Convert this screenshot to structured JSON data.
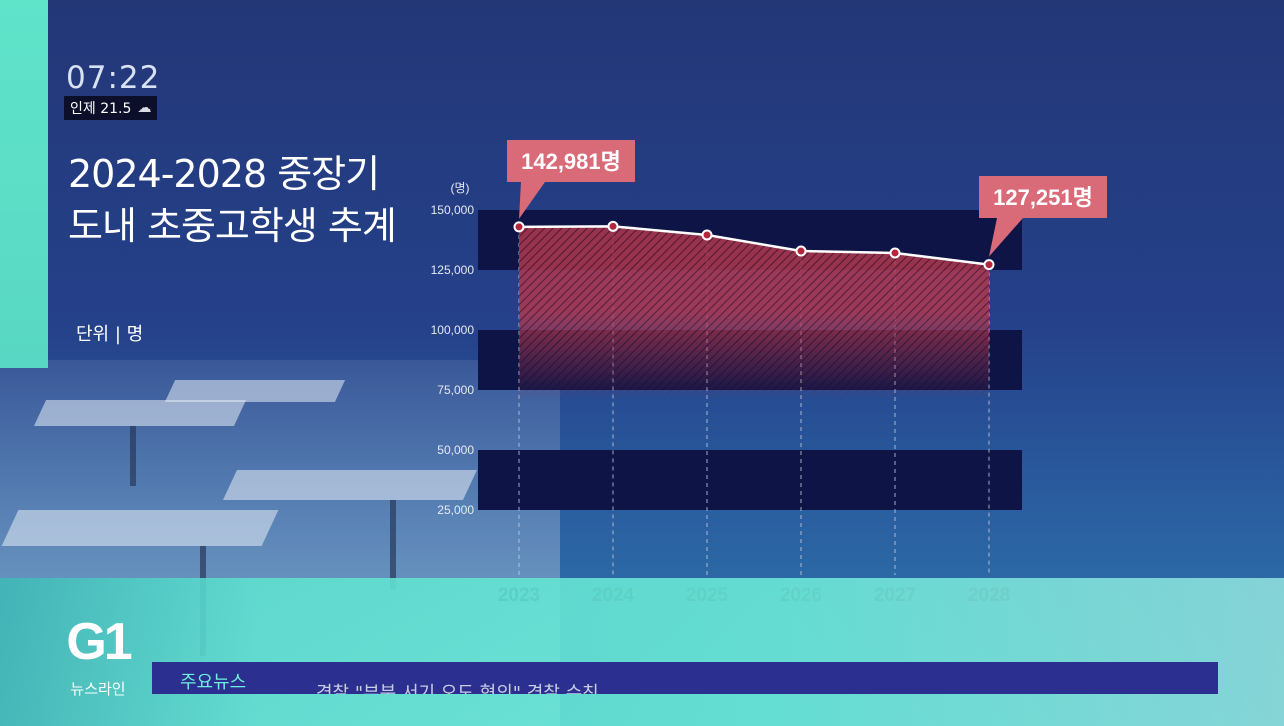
{
  "broadcast": {
    "time": "07:22",
    "weather": {
      "location_temp": "인제 21.5",
      "icon": "cloud-icon"
    },
    "title_line1": "2024-2028 중장기",
    "title_line2": "도내 초중고학생 추계",
    "unit_label": "단위 | 명",
    "logo": {
      "brand": "G1",
      "program": "뉴스라인"
    },
    "news_label": "주요뉴스",
    "news_text": "경찰 \"부분 서기 오도 혐의\" 경찰 수친"
  },
  "colors": {
    "accent": "#5fe3c9",
    "band_dark": "#0e1445",
    "area_fill": "#b33a55",
    "line": "#ffffff",
    "callout_bg": "#d96a78"
  },
  "chart_data": {
    "type": "area",
    "title": "",
    "ylabel": "(명)",
    "xlabel": "",
    "x": [
      "2023",
      "2024",
      "2025",
      "2026",
      "2027",
      "2028"
    ],
    "values": [
      142981,
      143200,
      139600,
      132900,
      132100,
      127251
    ],
    "ylim": [
      0,
      150000
    ],
    "y_ticks": [
      "150,000",
      "125,000",
      "100,000",
      "75,000",
      "50,000",
      "25,000"
    ],
    "annotations": [
      {
        "text": "142,981명",
        "x": "2023"
      },
      {
        "text": "127,251명",
        "x": "2028"
      }
    ],
    "grid": true
  }
}
